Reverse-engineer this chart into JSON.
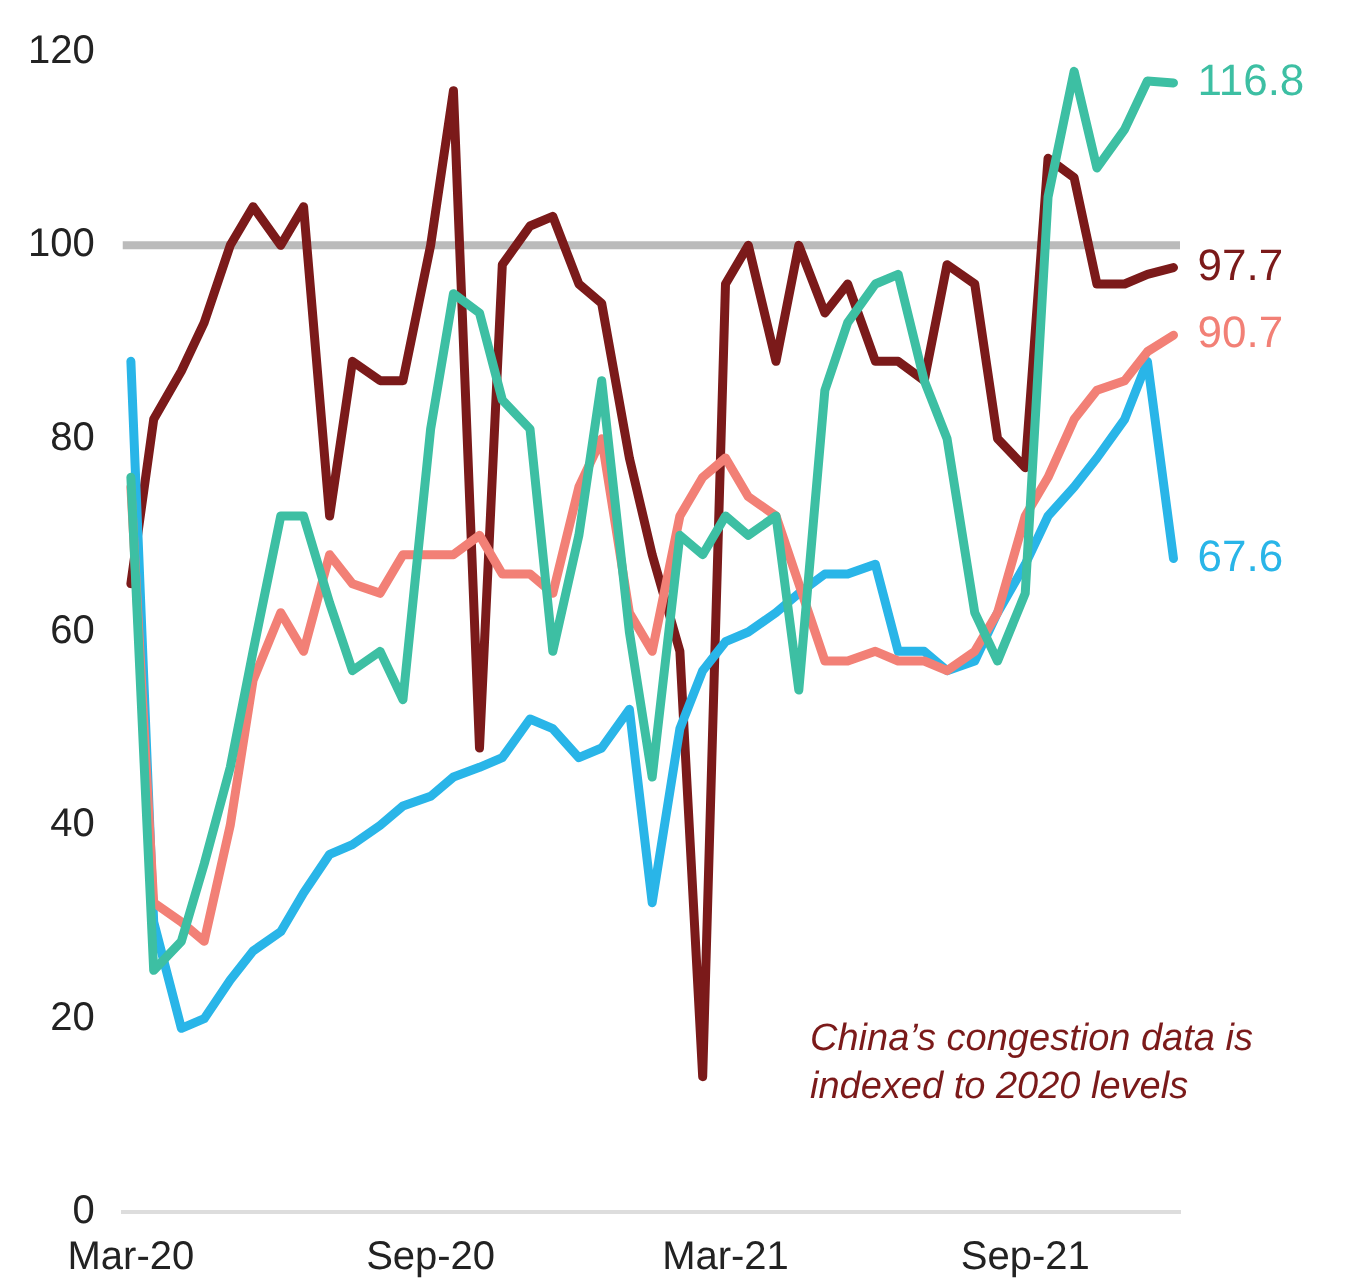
{
  "chart_data": {
    "type": "line",
    "x": [
      "2020-03-01",
      "2020-03-15",
      "2020-04-01",
      "2020-04-15",
      "2020-05-01",
      "2020-05-15",
      "2020-06-01",
      "2020-06-15",
      "2020-07-01",
      "2020-07-15",
      "2020-08-01",
      "2020-08-15",
      "2020-09-01",
      "2020-09-15",
      "2020-10-01",
      "2020-10-15",
      "2020-11-01",
      "2020-11-15",
      "2020-12-01",
      "2020-12-15",
      "2021-01-01",
      "2021-01-15",
      "2021-02-01",
      "2021-02-15",
      "2021-03-01",
      "2021-03-15",
      "2021-04-01",
      "2021-04-15",
      "2021-05-01",
      "2021-05-15",
      "2021-06-01",
      "2021-06-15",
      "2021-07-01",
      "2021-07-15",
      "2021-08-01",
      "2021-08-15",
      "2021-09-01",
      "2021-09-15",
      "2021-10-01",
      "2021-10-15",
      "2021-11-01",
      "2021-11-15",
      "2021-12-01"
    ],
    "series": [
      {
        "color": "#3dbfa3",
        "values": [
          76,
          25,
          28,
          36,
          46,
          58,
          72,
          72,
          63,
          56,
          58,
          53,
          81,
          95,
          93,
          84,
          81,
          58,
          70,
          86,
          60,
          45,
          70,
          68,
          72,
          70,
          72,
          54,
          85,
          92,
          96,
          97,
          86,
          80,
          62,
          57,
          64,
          105,
          118,
          108,
          112,
          117,
          116.8
        ],
        "value_labels": [
          null,
          null,
          null,
          null,
          null,
          null,
          null,
          null,
          null,
          null,
          null,
          null,
          null,
          null,
          null,
          null,
          null,
          null,
          null,
          null,
          null,
          null,
          null,
          null,
          null,
          null,
          null,
          null,
          null,
          null,
          null,
          null,
          null,
          null,
          null,
          null,
          null,
          null,
          null,
          null,
          null,
          null,
          "116.8"
        ]
      },
      {
        "color": "#f28076",
        "values": [
          75,
          32,
          30,
          28,
          40,
          55,
          62,
          58,
          68,
          65,
          64,
          68,
          68,
          68,
          70,
          66,
          66,
          64,
          75,
          80,
          62,
          58,
          72,
          76,
          78,
          74,
          72,
          65,
          57,
          57,
          58,
          57,
          57,
          56,
          58,
          62,
          72,
          76,
          82,
          85,
          86,
          89,
          90.7
        ],
        "value_labels": [
          null,
          null,
          null,
          null,
          null,
          null,
          null,
          null,
          null,
          null,
          null,
          null,
          null,
          null,
          null,
          null,
          null,
          null,
          null,
          null,
          null,
          null,
          null,
          null,
          null,
          null,
          null,
          null,
          null,
          null,
          null,
          null,
          null,
          null,
          null,
          null,
          null,
          null,
          null,
          null,
          null,
          null,
          "90.7"
        ]
      },
      {
        "color": "#29b5e8",
        "values": [
          88,
          30,
          19,
          20,
          24,
          27,
          29,
          33,
          37,
          38,
          40,
          42,
          43,
          45,
          46,
          47,
          51,
          50,
          47,
          48,
          52,
          32,
          50,
          56,
          59,
          60,
          62,
          64,
          66,
          66,
          67,
          58,
          58,
          56,
          57,
          62,
          67,
          72,
          75,
          78,
          82,
          88,
          67.6
        ],
        "value_labels": [
          null,
          null,
          null,
          null,
          null,
          null,
          null,
          null,
          null,
          null,
          null,
          null,
          null,
          null,
          null,
          null,
          null,
          null,
          null,
          null,
          null,
          null,
          null,
          null,
          null,
          null,
          null,
          null,
          null,
          null,
          null,
          null,
          null,
          null,
          null,
          null,
          null,
          null,
          null,
          null,
          null,
          null,
          "67.6"
        ]
      },
      {
        "color": "#7b1a1a",
        "values": [
          65,
          82,
          87,
          92,
          100,
          104,
          100,
          104,
          72,
          88,
          86,
          86,
          100,
          116,
          48,
          98,
          102,
          103,
          96,
          94,
          78,
          68,
          58,
          14,
          96,
          100,
          88,
          100,
          93,
          96,
          88,
          88,
          86,
          98,
          96,
          80,
          77,
          109,
          107,
          96,
          96,
          97,
          97.7
        ],
        "value_labels": [
          null,
          null,
          null,
          null,
          null,
          null,
          null,
          null,
          null,
          null,
          null,
          null,
          null,
          null,
          null,
          null,
          null,
          null,
          null,
          null,
          null,
          null,
          null,
          null,
          null,
          null,
          null,
          null,
          null,
          null,
          null,
          null,
          null,
          null,
          null,
          null,
          null,
          null,
          null,
          null,
          null,
          null,
          "97.7"
        ]
      }
    ],
    "xlim": [
      "2020-02-25",
      "2021-12-05"
    ],
    "xticks": [
      {
        "value": "2020-03-01",
        "label": "Mar-20"
      },
      {
        "value": "2020-09-01",
        "label": "Sep-20"
      },
      {
        "value": "2021-03-01",
        "label": "Mar-21"
      },
      {
        "value": "2021-09-01",
        "label": "Sep-21"
      }
    ],
    "ylim": [
      0,
      120
    ],
    "yticks": [
      0,
      20,
      40,
      60,
      80,
      100,
      120
    ],
    "ref_lines": [
      {
        "axis": "y",
        "value": 100,
        "color": "#bbbbbb"
      }
    ],
    "grid": false,
    "legend": false,
    "marker": "none",
    "line_style": "solid",
    "annotations": [
      "China’s congestion data is indexed to 2020 levels"
    ]
  }
}
